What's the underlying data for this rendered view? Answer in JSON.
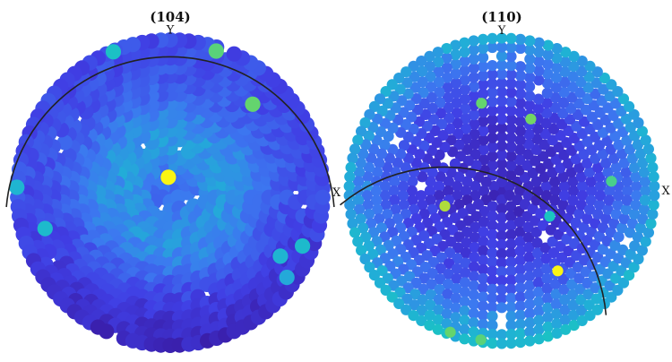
{
  "chart_data": [
    {
      "type": "scatter",
      "subtype": "pole-figure",
      "title": "(104)",
      "north_label": "Y",
      "east_label": "X",
      "color_scale": "viridis-like (low = dark blue, high = yellow)",
      "value_range": [
        0,
        1
      ],
      "grid": false,
      "pattern": {
        "rings": 17,
        "background_level": 0.22,
        "center_level": 0.45,
        "band_peak_radius": 0.35,
        "south_rim_level": 0.05,
        "empty_sites": 14
      },
      "highlighted_points": [
        {
          "azimuth_deg": 97,
          "radius": 0.1,
          "value": 1.0
        },
        {
          "azimuth_deg": 112,
          "radius": 0.98,
          "value": 0.62
        },
        {
          "azimuth_deg": 72,
          "radius": 0.96,
          "value": 0.78
        },
        {
          "azimuth_deg": 47,
          "radius": 0.78,
          "value": 0.8
        },
        {
          "azimuth_deg": 178,
          "radius": 0.99,
          "value": 0.55
        },
        {
          "azimuth_deg": 196,
          "radius": 0.84,
          "value": 0.58
        },
        {
          "azimuth_deg": -22,
          "radius": 0.92,
          "value": 0.58
        },
        {
          "azimuth_deg": -30,
          "radius": 0.82,
          "value": 0.55
        },
        {
          "azimuth_deg": -36,
          "radius": 0.93,
          "value": 0.5
        }
      ]
    },
    {
      "type": "scatter",
      "subtype": "pole-figure",
      "title": "(110)",
      "north_label": "Y",
      "east_label": "X",
      "color_scale": "viridis-like (low = dark blue, high = yellow)",
      "value_range": [
        0,
        1
      ],
      "grid": false,
      "pattern": {
        "rings": 17,
        "background_level": 0.1,
        "center_level": 0.08,
        "rim_level": 0.5,
        "empty_sites": 10
      },
      "highlighted_points": [
        {
          "azimuth_deg": 68,
          "radius": 0.5,
          "value": 0.82
        },
        {
          "azimuth_deg": 103,
          "radius": 0.58,
          "value": 0.8
        },
        {
          "azimuth_deg": 195,
          "radius": 0.38,
          "value": 0.9
        },
        {
          "azimuth_deg": -55,
          "radius": 0.63,
          "value": 1.0
        },
        {
          "azimuth_deg": 5,
          "radius": 0.71,
          "value": 0.75
        },
        {
          "azimuth_deg": -28,
          "radius": 0.35,
          "value": 0.65
        },
        {
          "azimuth_deg": -110,
          "radius": 0.97,
          "value": 0.8
        },
        {
          "azimuth_deg": -98,
          "radius": 0.97,
          "value": 0.78
        }
      ]
    }
  ]
}
